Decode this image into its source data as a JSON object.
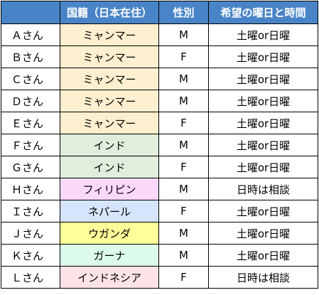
{
  "header": {
    "nationality": "国籍（日本在住）",
    "sex": "性別",
    "preferred_day": "希望の曜日と時間"
  },
  "rows": [
    {
      "name": "Ａさん",
      "nationality": "ミャンマー",
      "nat_color": "#fdefcf",
      "sex": "M",
      "day": "土曜or日曜"
    },
    {
      "name": "Ｂさん",
      "nationality": "ミャンマー",
      "nat_color": "#fdefcf",
      "sex": "F",
      "day": "土曜or日曜"
    },
    {
      "name": "Ｃさん",
      "nationality": "ミャンマー",
      "nat_color": "#fdefcf",
      "sex": "M",
      "day": "土曜or日曜"
    },
    {
      "name": "Ｄさん",
      "nationality": "ミャンマー",
      "nat_color": "#fdefcf",
      "sex": "M",
      "day": "土曜or日曜"
    },
    {
      "name": "Ｅさん",
      "nationality": "ミャンマー",
      "nat_color": "#fdefcf",
      "sex": "F",
      "day": "土曜or日曜"
    },
    {
      "name": "Ｆさん",
      "nationality": "インド",
      "nat_color": "#e1eedc",
      "sex": "M",
      "day": "土曜or日曜"
    },
    {
      "name": "Ｇさん",
      "nationality": "インド",
      "nat_color": "#e1eedc",
      "sex": "F",
      "day": "土曜or日曜"
    },
    {
      "name": "Ｈさん",
      "nationality": "フィリピン",
      "nat_color": "#fcd8fb",
      "sex": "M",
      "day": "日時は相談"
    },
    {
      "name": "Ｉさん",
      "nationality": "ネパール",
      "nat_color": "#d6e5fb",
      "sex": "F",
      "day": "土曜or日曜"
    },
    {
      "name": "Ｊさん",
      "nationality": "ウガンダ",
      "nat_color": "#ffff99",
      "sex": "M",
      "day": "土曜or日曜"
    },
    {
      "name": "Ｋさん",
      "nationality": "ガーナ",
      "nat_color": "#dcfbea",
      "sex": "M",
      "day": "土曜or日曜"
    },
    {
      "name": "Ｌさん",
      "nationality": "インドネシア",
      "nat_color": "#fde3e6",
      "sex": "F",
      "day": "日時は相談"
    }
  ]
}
